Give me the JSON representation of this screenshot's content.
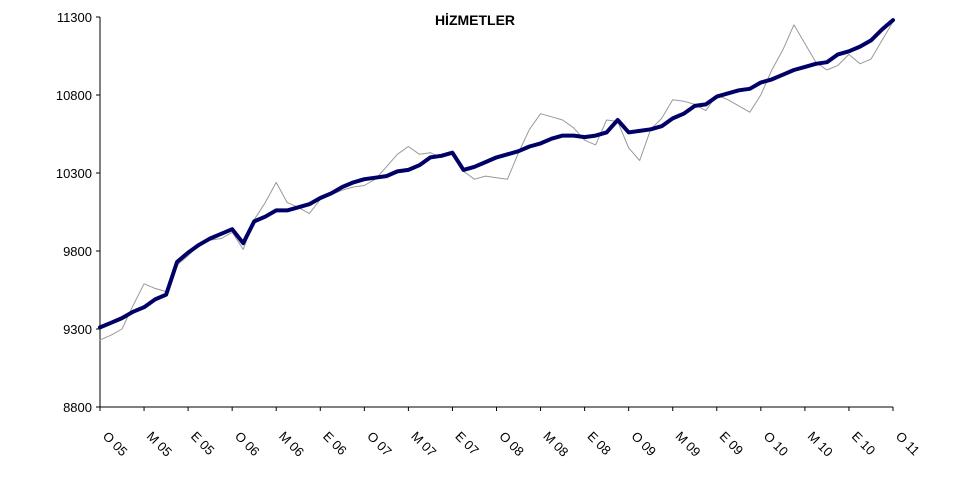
{
  "chart_data": {
    "type": "line",
    "title": "HİZMETLER",
    "categories": [
      "O 05",
      null,
      null,
      null,
      "M 05",
      null,
      null,
      null,
      "E 05",
      null,
      null,
      null,
      "O 06",
      null,
      null,
      null,
      "M 06",
      null,
      null,
      null,
      "E 06",
      null,
      null,
      null,
      "O 07",
      null,
      null,
      null,
      "M 07",
      null,
      null,
      null,
      "E 07",
      null,
      null,
      null,
      "O 08",
      null,
      null,
      null,
      "M 08",
      null,
      null,
      null,
      "E 08",
      null,
      null,
      null,
      "O 09",
      null,
      null,
      null,
      "M 09",
      null,
      null,
      null,
      "E 09",
      null,
      null,
      null,
      "O 10",
      null,
      null,
      null,
      "M 10",
      null,
      null,
      null,
      "E 10",
      null,
      null,
      null,
      "O 11"
    ],
    "series": [
      {
        "color": "#999999",
        "values": [
          9230,
          9260,
          9300,
          9450,
          9590,
          9560,
          9540,
          9710,
          9770,
          9840,
          9870,
          9880,
          9920,
          9810,
          10000,
          10110,
          10240,
          10110,
          10080,
          10040,
          10130,
          10160,
          10190,
          10210,
          10220,
          10260,
          10340,
          10420,
          10470,
          10420,
          10430,
          10400,
          10430,
          10310,
          10260,
          10280,
          10270,
          10260,
          10430,
          10580,
          10680,
          10660,
          10640,
          10590,
          10510,
          10480,
          10640,
          10630,
          10460,
          10380,
          10580,
          10650,
          10770,
          10760,
          10740,
          10700,
          10800,
          10770,
          10730,
          10690,
          10800,
          10960,
          11090,
          11250,
          11130,
          11010,
          10960,
          10990,
          11060,
          11000,
          11030,
          11150,
          11270
        ]
      },
      {
        "color": "#000066",
        "values": [
          9310,
          9340,
          9370,
          9410,
          9440,
          9490,
          9520,
          9730,
          9790,
          9840,
          9880,
          9910,
          9940,
          9850,
          9990,
          10020,
          10060,
          10060,
          10080,
          10100,
          10140,
          10170,
          10210,
          10240,
          10260,
          10270,
          10280,
          10310,
          10320,
          10350,
          10400,
          10410,
          10430,
          10320,
          10340,
          10370,
          10400,
          10420,
          10440,
          10470,
          10490,
          10520,
          10540,
          10540,
          10530,
          10540,
          10560,
          10640,
          10560,
          10570,
          10580,
          10600,
          10650,
          10680,
          10730,
          10740,
          10790,
          10810,
          10830,
          10840,
          10880,
          10900,
          10930,
          10960,
          10980,
          11000,
          11010,
          11060,
          11080,
          11110,
          11150,
          11220,
          11280
        ]
      }
    ],
    "ylim": [
      8800,
      11300
    ],
    "yticks": [
      8800,
      9300,
      9800,
      10300,
      10800,
      11300
    ]
  }
}
